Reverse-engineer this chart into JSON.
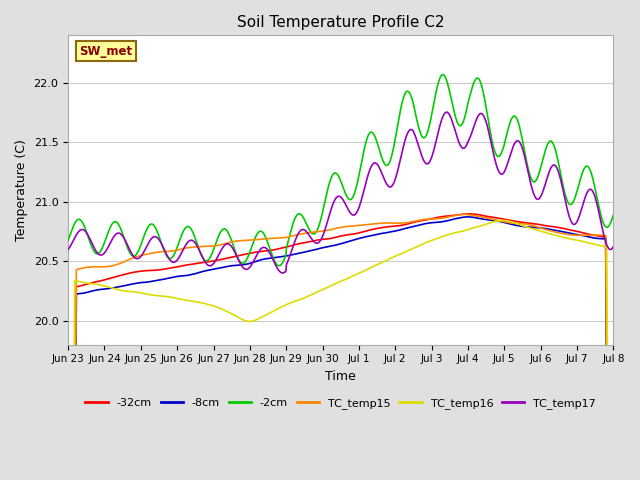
{
  "title": "Soil Temperature Profile C2",
  "xlabel": "Time",
  "ylabel": "Temperature (C)",
  "ylim": [
    19.8,
    22.4
  ],
  "fig_bg_color": "#e0e0e0",
  "plot_bg_color": "#ffffff",
  "grid_color": "#cccccc",
  "annotation_text": "SW_met",
  "annotation_box_color": "#ffff99",
  "annotation_text_color": "#8b0000",
  "annotation_border_color": "#8b6914",
  "series": {
    "-32cm": {
      "color": "#ff0000",
      "lw": 1.2
    },
    "-8cm": {
      "color": "#0000cd",
      "lw": 1.2
    },
    "-2cm": {
      "color": "#00cc00",
      "lw": 1.2
    },
    "TC_temp15": {
      "color": "#ff8800",
      "lw": 1.2
    },
    "TC_temp16": {
      "color": "#dddd00",
      "lw": 1.2
    },
    "TC_temp17": {
      "color": "#9900bb",
      "lw": 1.2
    }
  },
  "xtick_labels": [
    "Jun 23",
    "Jun 24",
    "Jun 25",
    "Jun 26",
    "Jun 27",
    "Jun 28",
    "Jun 29",
    "Jun 30",
    "Jul 1",
    "Jul 2",
    "Jul 3",
    "Jul 4",
    "Jul 5",
    "Jul 6",
    "Jul 7",
    "Jul 8"
  ],
  "n_points": 1000
}
